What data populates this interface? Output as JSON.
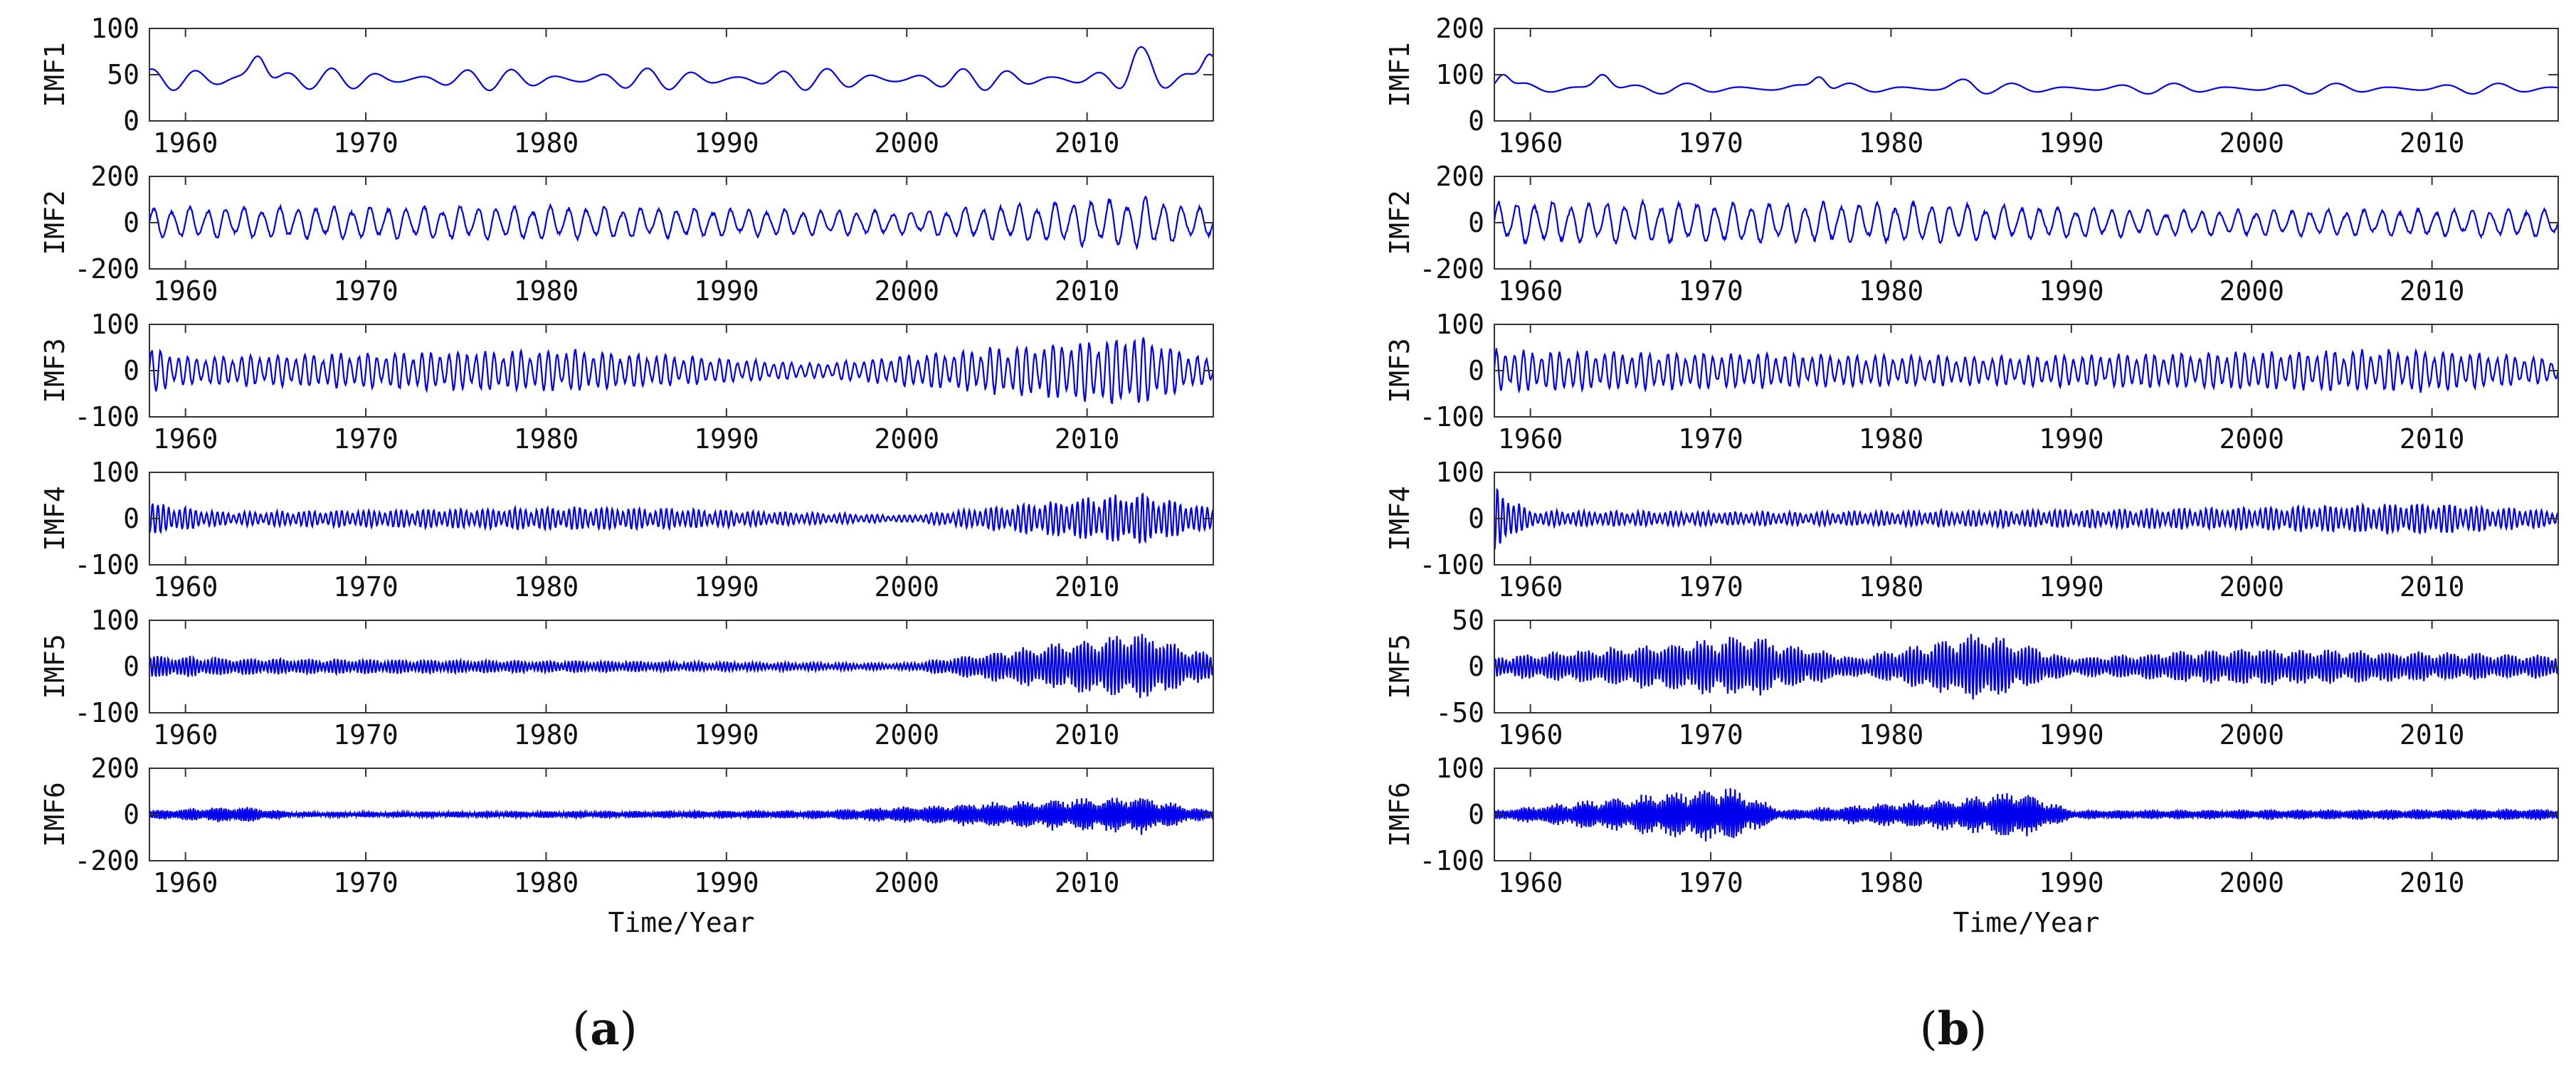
{
  "chart_data": [
    {
      "type": "line",
      "panel_label": "a",
      "xlabel": "Time/Year",
      "xlim": [
        1958,
        2017
      ],
      "xticks": [
        1960,
        1970,
        1980,
        1990,
        2000,
        2010
      ],
      "subplots": [
        {
          "ylabel": "IMF1",
          "ylim": [
            0,
            100
          ],
          "yticks": [
            0,
            50,
            100
          ],
          "shape": {
            "kind": "trend",
            "base": 45,
            "amp": 12,
            "period": 2.5,
            "bursts": [
              [
                1964,
                70
              ],
              [
                2013,
                80
              ],
              [
                2016.8,
                72
              ]
            ]
          }
        },
        {
          "ylabel": "IMF2",
          "ylim": [
            -200,
            200
          ],
          "yticks": [
            -200,
            0,
            200
          ],
          "shape": {
            "kind": "osc",
            "amp": 55,
            "period": 1.0,
            "envelope": [
              [
                1958,
                1.2
              ],
              [
                1980,
                1.3
              ],
              [
                2000,
                0.9
              ],
              [
                2013,
                2.0
              ],
              [
                2017,
                1.0
              ]
            ]
          }
        },
        {
          "ylabel": "IMF3",
          "ylim": [
            -100,
            100
          ],
          "yticks": [
            -100,
            0,
            100
          ],
          "shape": {
            "kind": "osc",
            "amp": 25,
            "period": 0.5,
            "envelope": [
              [
                1958,
                2.0
              ],
              [
                1960,
                1.2
              ],
              [
                1981,
                1.8
              ],
              [
                1995,
                0.6
              ],
              [
                2013,
                3.0
              ],
              [
                2017,
                0.8
              ]
            ]
          }
        },
        {
          "ylabel": "IMF4",
          "ylim": [
            -100,
            100
          ],
          "yticks": [
            -100,
            0,
            100
          ],
          "shape": {
            "kind": "osc",
            "amp": 14,
            "period": 0.3,
            "envelope": [
              [
                1958,
                2.5
              ],
              [
                1962,
                1.0
              ],
              [
                1983,
                1.8
              ],
              [
                2000,
                0.5
              ],
              [
                2013,
                4.0
              ],
              [
                2017,
                1.5
              ]
            ]
          }
        },
        {
          "ylabel": "IMF5",
          "ylim": [
            -100,
            100
          ],
          "yticks": [
            -100,
            0,
            100
          ],
          "shape": {
            "kind": "osc",
            "amp": 12,
            "period": 0.2,
            "envelope": [
              [
                1958,
                2.0
              ],
              [
                1963,
                1.5
              ],
              [
                1975,
                1.2
              ],
              [
                2000,
                0.6
              ],
              [
                2013,
                6.0
              ],
              [
                2017,
                2.0
              ]
            ]
          }
        },
        {
          "ylabel": "IMF6",
          "ylim": [
            -200,
            200
          ],
          "yticks": [
            -200,
            0,
            200
          ],
          "shape": {
            "kind": "osc",
            "amp": 18,
            "period": 0.13,
            "envelope": [
              [
                1958,
                1.0
              ],
              [
                1963,
                2.0
              ],
              [
                1966,
                0.6
              ],
              [
                1995,
                1.0
              ],
              [
                2013,
                4.5
              ],
              [
                2017,
                0.8
              ]
            ]
          }
        }
      ]
    },
    {
      "type": "line",
      "panel_label": "b",
      "xlabel": "Time/Year",
      "xlim": [
        1958,
        2017
      ],
      "xticks": [
        1960,
        1970,
        1980,
        1990,
        2000,
        2010
      ],
      "subplots": [
        {
          "ylabel": "IMF1",
          "ylim": [
            0,
            200
          ],
          "yticks": [
            0,
            100,
            200
          ],
          "shape": {
            "kind": "trend",
            "base": 70,
            "amp": 12,
            "period": 3.0,
            "bursts": [
              [
                1958.5,
                100
              ],
              [
                1964,
                100
              ],
              [
                1976,
                95
              ],
              [
                1984,
                90
              ]
            ]
          }
        },
        {
          "ylabel": "IMF2",
          "ylim": [
            -200,
            200
          ],
          "yticks": [
            -200,
            0,
            200
          ],
          "shape": {
            "kind": "osc",
            "amp": 60,
            "period": 1.0,
            "envelope": [
              [
                1958,
                1.5
              ],
              [
                1982,
                1.4
              ],
              [
                1995,
                0.9
              ],
              [
                2017,
                1.0
              ]
            ]
          }
        },
        {
          "ylabel": "IMF3",
          "ylim": [
            -100,
            100
          ],
          "yticks": [
            -100,
            0,
            100
          ],
          "shape": {
            "kind": "osc",
            "amp": 25,
            "period": 0.5,
            "envelope": [
              [
                1958,
                1.8
              ],
              [
                1965,
                1.6
              ],
              [
                1985,
                1.2
              ],
              [
                2000,
                1.6
              ],
              [
                2010,
                1.8
              ],
              [
                2017,
                1.0
              ]
            ]
          }
        },
        {
          "ylabel": "IMF4",
          "ylim": [
            -100,
            100
          ],
          "yticks": [
            -100,
            0,
            100
          ],
          "shape": {
            "kind": "osc",
            "amp": 14,
            "period": 0.3,
            "envelope": [
              [
                1958,
                5.0
              ],
              [
                1960,
                1.2
              ],
              [
                1975,
                1.0
              ],
              [
                1998,
                1.6
              ],
              [
                2010,
                2.4
              ],
              [
                2017,
                1.2
              ]
            ]
          }
        },
        {
          "ylabel": "IMF5",
          "ylim": [
            -50,
            50
          ],
          "yticks": [
            -50,
            0,
            50
          ],
          "shape": {
            "kind": "osc",
            "amp": 10,
            "period": 0.2,
            "envelope": [
              [
                1958,
                1.0
              ],
              [
                1972,
                3.2
              ],
              [
                1978,
                1.0
              ],
              [
                1985,
                3.6
              ],
              [
                1990,
                1.0
              ],
              [
                2000,
                2.0
              ],
              [
                2017,
                1.2
              ]
            ]
          }
        },
        {
          "ylabel": "IMF6",
          "ylim": [
            -100,
            100
          ],
          "yticks": [
            -100,
            0,
            100
          ],
          "shape": {
            "kind": "osc",
            "amp": 12,
            "period": 0.13,
            "envelope": [
              [
                1958,
                0.8
              ],
              [
                1971,
                5.0
              ],
              [
                1974,
                0.8
              ],
              [
                1984,
                3.0
              ],
              [
                1987,
                4.5
              ],
              [
                1990,
                0.8
              ],
              [
                2017,
                1.0
              ]
            ]
          }
        }
      ]
    }
  ]
}
